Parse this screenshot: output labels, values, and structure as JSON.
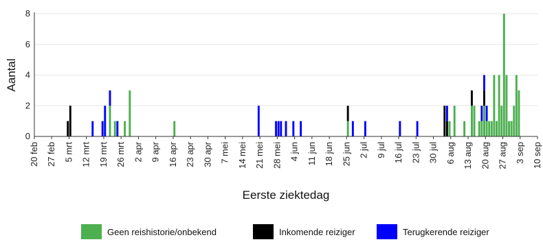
{
  "chart_data": {
    "type": "bar",
    "stacked": true,
    "xlabel": "Eerste ziektedag",
    "ylabel": "Aantal",
    "ylim": [
      0,
      8
    ],
    "yticks": [
      0,
      2,
      4,
      6,
      8
    ],
    "x_start": "2020-02-20",
    "x_end": "2020-09-10",
    "xtick_labels": [
      "20 feb",
      "27 feb",
      "5 mrt",
      "12 mrt",
      "19 mrt",
      "26 mrt",
      "2 apr",
      "9 apr",
      "16 apr",
      "23 apr",
      "30 apr",
      "7 mei",
      "14 mei",
      "21 mei",
      "28 mei",
      "4 jun",
      "11 jun",
      "18 jun",
      "25 jun",
      "2 jul",
      "9 jul",
      "16 jul",
      "23 jul",
      "30 jul",
      "6 aug",
      "13 aug",
      "20 aug",
      "27 aug",
      "3 sep",
      "10 sep"
    ],
    "legend_position": "bottom",
    "series": [
      {
        "name": "Geen reishistorie/onbekend",
        "color": "#4caf50",
        "points": [
          {
            "x": "2020-03-21",
            "y": 2
          },
          {
            "x": "2020-03-23",
            "y": 1
          },
          {
            "x": "2020-03-27",
            "y": 1
          },
          {
            "x": "2020-03-29",
            "y": 3
          },
          {
            "x": "2020-04-16",
            "y": 1
          },
          {
            "x": "2020-06-25",
            "y": 1
          },
          {
            "x": "2020-08-05",
            "y": 1
          },
          {
            "x": "2020-08-07",
            "y": 2
          },
          {
            "x": "2020-08-11",
            "y": 1
          },
          {
            "x": "2020-08-14",
            "y": 2
          },
          {
            "x": "2020-08-15",
            "y": 2
          },
          {
            "x": "2020-08-17",
            "y": 1
          },
          {
            "x": "2020-08-18",
            "y": 1
          },
          {
            "x": "2020-08-19",
            "y": 2
          },
          {
            "x": "2020-08-20",
            "y": 1
          },
          {
            "x": "2020-08-21",
            "y": 1
          },
          {
            "x": "2020-08-22",
            "y": 1
          },
          {
            "x": "2020-08-23",
            "y": 4
          },
          {
            "x": "2020-08-24",
            "y": 1
          },
          {
            "x": "2020-08-25",
            "y": 4
          },
          {
            "x": "2020-08-26",
            "y": 2
          },
          {
            "x": "2020-08-27",
            "y": 8
          },
          {
            "x": "2020-08-28",
            "y": 4
          },
          {
            "x": "2020-08-29",
            "y": 1
          },
          {
            "x": "2020-08-30",
            "y": 1
          },
          {
            "x": "2020-08-31",
            "y": 2
          },
          {
            "x": "2020-09-01",
            "y": 4
          },
          {
            "x": "2020-09-02",
            "y": 3
          }
        ]
      },
      {
        "name": "Inkomende reiziger",
        "color": "#000000",
        "points": [
          {
            "x": "2020-03-04",
            "y": 1
          },
          {
            "x": "2020-03-05",
            "y": 2
          },
          {
            "x": "2020-06-25",
            "y": 1
          },
          {
            "x": "2020-08-03",
            "y": 2
          },
          {
            "x": "2020-08-04",
            "y": 1
          },
          {
            "x": "2020-08-14",
            "y": 1
          },
          {
            "x": "2020-08-19",
            "y": 1
          }
        ]
      },
      {
        "name": "Terugkerende reiziger",
        "color": "#0000ff",
        "points": [
          {
            "x": "2020-03-14",
            "y": 1
          },
          {
            "x": "2020-03-18",
            "y": 1
          },
          {
            "x": "2020-03-19",
            "y": 2
          },
          {
            "x": "2020-03-21",
            "y": 1
          },
          {
            "x": "2020-03-24",
            "y": 1
          },
          {
            "x": "2020-05-20",
            "y": 2
          },
          {
            "x": "2020-05-27",
            "y": 1
          },
          {
            "x": "2020-05-28",
            "y": 1
          },
          {
            "x": "2020-05-29",
            "y": 1
          },
          {
            "x": "2020-05-31",
            "y": 1
          },
          {
            "x": "2020-06-03",
            "y": 1
          },
          {
            "x": "2020-06-06",
            "y": 1
          },
          {
            "x": "2020-06-27",
            "y": 1
          },
          {
            "x": "2020-07-02",
            "y": 1
          },
          {
            "x": "2020-07-16",
            "y": 1
          },
          {
            "x": "2020-07-23",
            "y": 1
          },
          {
            "x": "2020-08-04",
            "y": 1
          },
          {
            "x": "2020-08-18",
            "y": 1
          },
          {
            "x": "2020-08-19",
            "y": 1
          },
          {
            "x": "2020-08-20",
            "y": 1
          }
        ]
      }
    ]
  }
}
